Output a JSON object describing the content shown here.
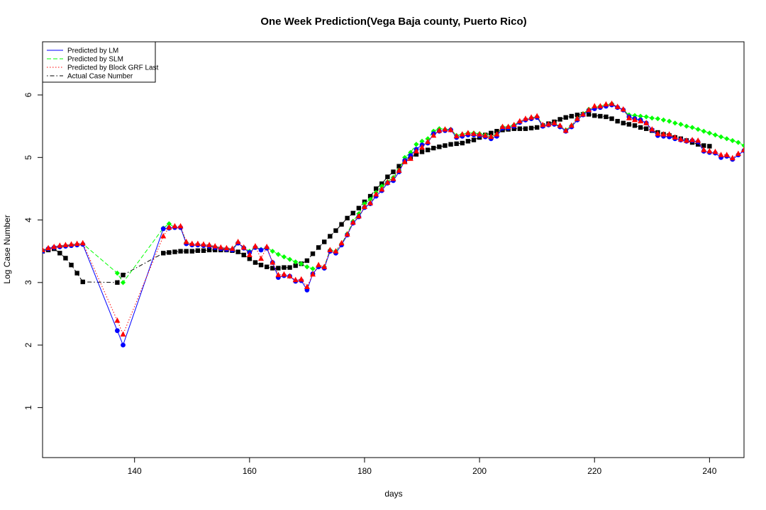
{
  "chart_data": {
    "type": "line",
    "title": "One Week Prediction(Vega Baja county, Puerto Rico)",
    "xlabel": "days",
    "ylabel": "Log Case Number",
    "xlim": [
      124,
      246
    ],
    "ylim": [
      0.2,
      6.85
    ],
    "xticks": [
      140,
      160,
      180,
      200,
      220,
      240
    ],
    "yticks": [
      1,
      2,
      3,
      4,
      5,
      6
    ],
    "grid": false,
    "legend_position": "top-left",
    "x": [
      124,
      125,
      126,
      127,
      128,
      129,
      130,
      131,
      137,
      138,
      145,
      146,
      147,
      148,
      149,
      150,
      151,
      152,
      153,
      154,
      155,
      156,
      157,
      158,
      159,
      160,
      161,
      162,
      163,
      164,
      165,
      166,
      167,
      168,
      169,
      170,
      171,
      172,
      173,
      174,
      175,
      176,
      177,
      178,
      179,
      180,
      181,
      182,
      183,
      184,
      185,
      186,
      187,
      188,
      189,
      190,
      191,
      192,
      193,
      194,
      195,
      196,
      197,
      198,
      199,
      200,
      201,
      202,
      203,
      204,
      205,
      206,
      207,
      208,
      209,
      210,
      211,
      212,
      213,
      214,
      215,
      216,
      217,
      218,
      219,
      220,
      221,
      222,
      223,
      224,
      225,
      226,
      227,
      228,
      229,
      230,
      231,
      232,
      233,
      234,
      235,
      236,
      237,
      238,
      239,
      240,
      241,
      242,
      243,
      244,
      245,
      246
    ],
    "series": [
      {
        "name": "Predicted by LM",
        "color": "#0000ff",
        "line_style": "solid",
        "marker": "circle",
        "values": [
          3.5,
          3.54,
          3.56,
          3.57,
          3.58,
          3.59,
          3.6,
          3.61,
          2.23,
          2.0,
          3.86,
          3.87,
          3.88,
          3.88,
          3.62,
          3.6,
          3.6,
          3.59,
          3.58,
          3.56,
          3.54,
          3.53,
          3.52,
          3.63,
          3.55,
          3.48,
          3.56,
          3.52,
          3.55,
          3.32,
          3.08,
          3.11,
          3.1,
          3.02,
          3.03,
          2.88,
          3.14,
          3.25,
          3.23,
          3.5,
          3.47,
          3.6,
          3.76,
          3.95,
          4.05,
          4.2,
          4.26,
          4.38,
          4.47,
          4.59,
          4.63,
          4.77,
          4.95,
          5.03,
          5.13,
          5.2,
          5.23,
          5.38,
          5.42,
          5.43,
          5.44,
          5.32,
          5.34,
          5.36,
          5.36,
          5.35,
          5.33,
          5.3,
          5.34,
          5.47,
          5.47,
          5.5,
          5.56,
          5.6,
          5.62,
          5.64,
          5.5,
          5.52,
          5.53,
          5.49,
          5.42,
          5.49,
          5.6,
          5.68,
          5.75,
          5.78,
          5.8,
          5.82,
          5.84,
          5.8,
          5.76,
          5.65,
          5.62,
          5.6,
          5.55,
          5.44,
          5.35,
          5.34,
          5.33,
          5.3,
          5.28,
          5.26,
          5.27,
          5.25,
          5.1,
          5.08,
          5.07,
          5.0,
          5.02,
          4.97,
          5.04,
          5.11
        ]
      },
      {
        "name": "Predicted by SLM",
        "color": "#00ff00",
        "line_style": "dashed",
        "marker": "diamond",
        "values": [
          3.51,
          3.54,
          3.56,
          3.58,
          3.59,
          3.6,
          3.61,
          3.62,
          3.15,
          3.0,
          3.87,
          3.94,
          3.88,
          3.88,
          3.64,
          3.61,
          3.61,
          3.6,
          3.59,
          3.57,
          3.55,
          3.54,
          3.53,
          3.64,
          3.56,
          3.5,
          3.57,
          3.53,
          3.56,
          3.5,
          3.45,
          3.41,
          3.37,
          3.33,
          3.3,
          3.25,
          3.22,
          3.25,
          3.25,
          3.52,
          3.5,
          3.62,
          3.78,
          3.98,
          4.1,
          4.26,
          4.33,
          4.44,
          4.54,
          4.61,
          4.68,
          4.8,
          5.0,
          5.08,
          5.21,
          5.26,
          5.3,
          5.42,
          5.46,
          5.45,
          5.45,
          5.35,
          5.37,
          5.39,
          5.39,
          5.38,
          5.36,
          5.33,
          5.37,
          5.49,
          5.49,
          5.52,
          5.57,
          5.6,
          5.63,
          5.65,
          5.52,
          5.53,
          5.54,
          5.5,
          5.44,
          5.51,
          5.62,
          5.7,
          5.77,
          5.8,
          5.82,
          5.84,
          5.86,
          5.8,
          5.76,
          5.68,
          5.67,
          5.66,
          5.65,
          5.63,
          5.62,
          5.6,
          5.58,
          5.55,
          5.53,
          5.5,
          5.48,
          5.45,
          5.42,
          5.39,
          5.36,
          5.33,
          5.3,
          5.27,
          5.24,
          5.19
        ]
      },
      {
        "name": "Predicted by Block GRF Last",
        "color": "#ff0000",
        "line_style": "dotted",
        "marker": "triangle",
        "values": [
          3.52,
          3.55,
          3.57,
          3.59,
          3.6,
          3.61,
          3.62,
          3.63,
          2.39,
          2.17,
          3.74,
          3.88,
          3.9,
          3.9,
          3.65,
          3.62,
          3.62,
          3.61,
          3.6,
          3.58,
          3.56,
          3.55,
          3.54,
          3.65,
          3.56,
          3.44,
          3.58,
          3.38,
          3.57,
          3.32,
          3.12,
          3.13,
          3.1,
          3.04,
          3.05,
          2.93,
          3.13,
          3.28,
          3.25,
          3.52,
          3.5,
          3.63,
          3.77,
          3.96,
          4.06,
          4.21,
          4.27,
          4.41,
          4.49,
          4.6,
          4.66,
          4.79,
          4.93,
          4.98,
          5.1,
          5.16,
          5.25,
          5.35,
          5.43,
          5.45,
          5.44,
          5.34,
          5.37,
          5.39,
          5.38,
          5.37,
          5.35,
          5.33,
          5.37,
          5.49,
          5.49,
          5.52,
          5.58,
          5.62,
          5.64,
          5.66,
          5.52,
          5.53,
          5.55,
          5.51,
          5.43,
          5.51,
          5.62,
          5.69,
          5.76,
          5.82,
          5.82,
          5.85,
          5.86,
          5.81,
          5.77,
          5.63,
          5.6,
          5.58,
          5.55,
          5.45,
          5.38,
          5.37,
          5.37,
          5.32,
          5.29,
          5.27,
          5.28,
          5.27,
          5.12,
          5.1,
          5.09,
          5.04,
          5.04,
          4.99,
          5.06,
          5.12
        ]
      },
      {
        "name": "Actual Case Number",
        "color": "#000000",
        "line_style": "dotdash",
        "marker": "square",
        "values": [
          3.5,
          3.52,
          3.54,
          3.47,
          3.39,
          3.28,
          3.15,
          3.01,
          3.0,
          3.12,
          3.47,
          3.48,
          3.49,
          3.5,
          3.5,
          3.5,
          3.51,
          3.51,
          3.52,
          3.52,
          3.52,
          3.52,
          3.51,
          3.49,
          3.44,
          3.38,
          3.32,
          3.28,
          3.25,
          3.23,
          3.23,
          3.24,
          3.24,
          3.27,
          3.3,
          3.35,
          3.46,
          3.56,
          3.65,
          3.74,
          3.83,
          3.93,
          4.03,
          4.11,
          4.19,
          4.29,
          4.38,
          4.5,
          4.58,
          4.69,
          4.77,
          4.86,
          4.93,
          5.0,
          5.05,
          5.09,
          5.12,
          5.15,
          5.17,
          5.19,
          5.21,
          5.22,
          5.23,
          5.26,
          5.28,
          5.32,
          5.36,
          5.39,
          5.42,
          5.44,
          5.45,
          5.46,
          5.46,
          5.46,
          5.47,
          5.48,
          5.51,
          5.54,
          5.57,
          5.61,
          5.64,
          5.66,
          5.68,
          5.69,
          5.69,
          5.67,
          5.66,
          5.65,
          5.62,
          5.58,
          5.55,
          5.53,
          5.51,
          5.48,
          5.46,
          5.43,
          5.4,
          5.37,
          5.35,
          5.32,
          5.3,
          5.27,
          5.24,
          5.21,
          5.19,
          5.18,
          null,
          null,
          null,
          null,
          null,
          null
        ]
      }
    ]
  }
}
